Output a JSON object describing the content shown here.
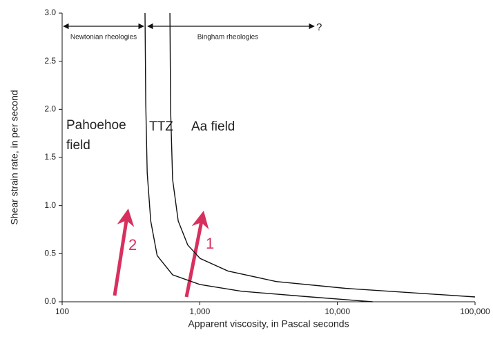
{
  "chart_data": {
    "type": "line",
    "xlabel": "Apparent viscosity, in Pascal seconds",
    "ylabel": "Shear strain rate, in per second",
    "xlog": true,
    "xlim": [
      100,
      100000
    ],
    "ylim": [
      0,
      3.0
    ],
    "xticks": [
      100,
      {
        "value": 1000,
        "label": "1,000"
      },
      {
        "value": 10000,
        "label": "10,000"
      },
      {
        "value": 100000,
        "label": "100,000"
      }
    ],
    "yticks": [
      {
        "value": 0,
        "label": "0.0"
      },
      0.5,
      {
        "value": 1,
        "label": "1.0"
      },
      1.5,
      {
        "value": 2,
        "label": "2.0"
      },
      2.5,
      {
        "value": 3,
        "label": "3.0"
      }
    ],
    "series": [
      {
        "color": "#111111",
        "x": [
          400,
          405,
          415,
          440,
          490,
          635,
          1000,
          2000,
          6400,
          18000
        ],
        "values": [
          3.0,
          2.06,
          1.34,
          0.84,
          0.48,
          0.28,
          0.18,
          0.11,
          0.05,
          0
        ]
      },
      {
        "color": "#111111",
        "x": [
          607,
          614,
          635,
          697,
          818,
          1007,
          1600,
          3590,
          11400,
          100000
        ],
        "values": [
          3.0,
          1.99,
          1.27,
          0.84,
          0.59,
          0.45,
          0.32,
          0.21,
          0.14,
          0.05
        ]
      }
    ],
    "annotations": [
      "Newtonian rheologies",
      "Bingham rheologies",
      "?",
      "Pahoehoe",
      "field",
      "TTZ",
      "Aa field",
      "1",
      "2"
    ]
  }
}
